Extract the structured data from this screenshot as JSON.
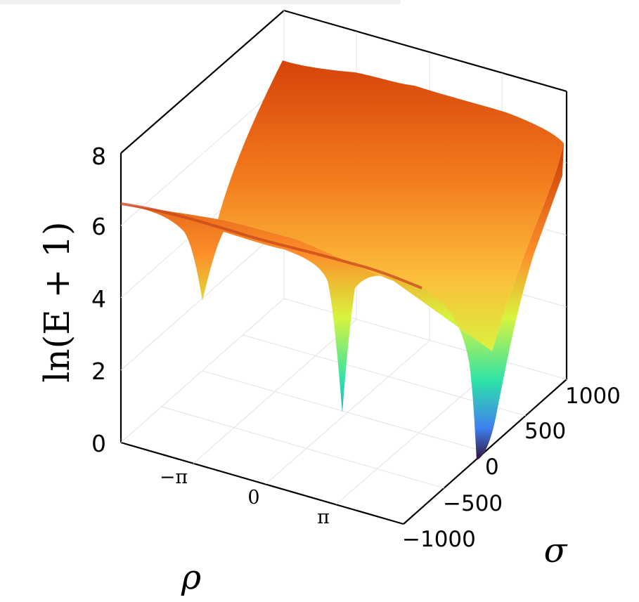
{
  "chart_data": {
    "type": "surface",
    "title": "",
    "xlabel": "ρ",
    "ylabel": "σ",
    "zlabel": "ln(E + 1)",
    "x_ticks": [
      "−π",
      "0",
      "π"
    ],
    "y_ticks": [
      "−1000",
      "−500",
      "0",
      "500",
      "1000"
    ],
    "z_ticks": [
      "0",
      "2",
      "4",
      "6",
      "8"
    ],
    "xlim": [
      -5,
      5
    ],
    "ylim": [
      -1000,
      1000
    ],
    "zlim": [
      0,
      8
    ],
    "grid": true,
    "colormap": "turbo",
    "surface_description_points": [
      {
        "rho": -5.0,
        "sigma": -1000,
        "z": 6.6
      },
      {
        "rho": -3.14,
        "sigma": -1000,
        "z": 3.9
      },
      {
        "rho": 0.0,
        "sigma": -1000,
        "z": 0.8
      },
      {
        "rho": 3.14,
        "sigma": -1000,
        "z": 0.05
      },
      {
        "rho": -5.0,
        "sigma": 1000,
        "z": 7.2
      },
      {
        "rho": 5.0,
        "sigma": 1000,
        "z": 7.3
      }
    ],
    "colors": {
      "low": "#30123b",
      "mid_low": "#4686fb",
      "mid": "#1ae4b6",
      "mid_high": "#a2fc3c",
      "high_mid": "#fb8022",
      "high": "#d93806",
      "top": "#a11201"
    }
  }
}
